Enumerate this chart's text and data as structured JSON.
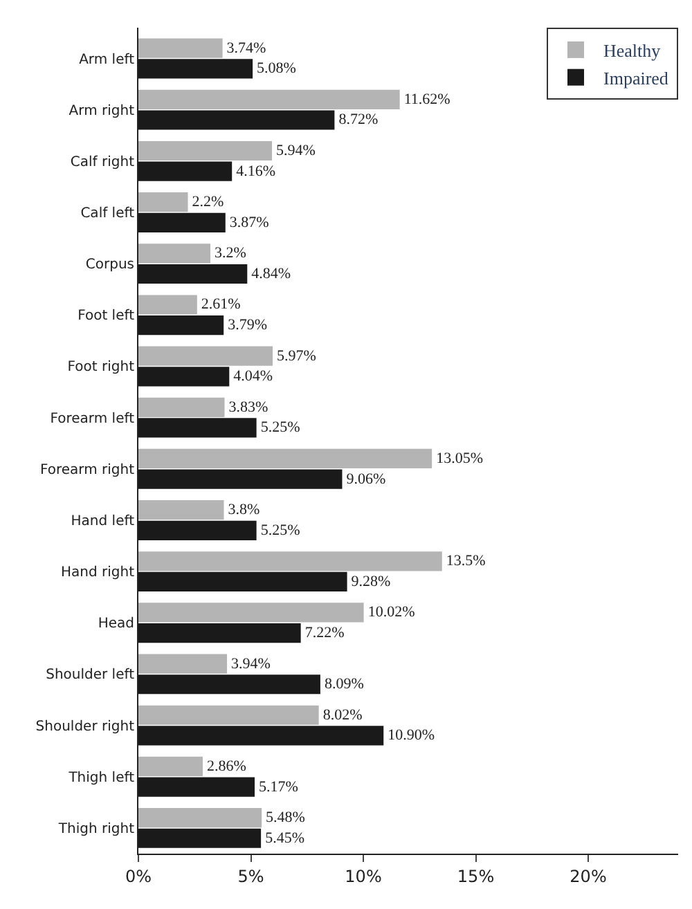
{
  "chart_data": {
    "type": "bar",
    "orientation": "horizontal",
    "categories": [
      "Arm left",
      "Arm right",
      "Calf right",
      "Calf left",
      "Corpus",
      "Foot left",
      "Foot right",
      "Forearm left",
      "Forearm right",
      "Hand left",
      "Hand right",
      "Head",
      "Shoulder left",
      "Shoulder right",
      "Thigh left",
      "Thigh right"
    ],
    "series": [
      {
        "name": "Healthy",
        "color": "#b4b4b4",
        "values": [
          3.74,
          11.62,
          5.94,
          2.2,
          3.2,
          2.61,
          5.97,
          3.83,
          13.05,
          3.8,
          13.5,
          10.02,
          3.94,
          8.02,
          2.86,
          5.48
        ],
        "value_labels": [
          "3.74%",
          "11.62%",
          "5.94%",
          "2.2%",
          "3.2%",
          "2.61%",
          "5.97%",
          "3.83%",
          "13.05%",
          "3.8%",
          "13.5%",
          "10.02%",
          "3.94%",
          "8.02%",
          "2.86%",
          "5.48%"
        ]
      },
      {
        "name": "Impaired",
        "color": "#1a1a1a",
        "values": [
          5.08,
          8.72,
          4.16,
          3.87,
          4.84,
          3.79,
          4.04,
          5.25,
          9.06,
          5.25,
          9.28,
          7.22,
          8.09,
          10.9,
          5.17,
          5.45
        ],
        "value_labels": [
          "5.08%",
          "8.72%",
          "4.16%",
          "3.87%",
          "4.84%",
          "3.79%",
          "4.04%",
          "5.25%",
          "9.06%",
          "5.25%",
          "9.28%",
          "7.22%",
          "8.09%",
          "10.90%",
          "5.17%",
          "5.45%"
        ]
      }
    ],
    "xlim": [
      0,
      24
    ],
    "xticks": [
      {
        "value": 0,
        "label": "0%"
      },
      {
        "value": 5,
        "label": "5%"
      },
      {
        "value": 10,
        "label": "10%"
      },
      {
        "value": 15,
        "label": "15%"
      },
      {
        "value": 20,
        "label": "20%"
      }
    ],
    "legend": "top right"
  }
}
